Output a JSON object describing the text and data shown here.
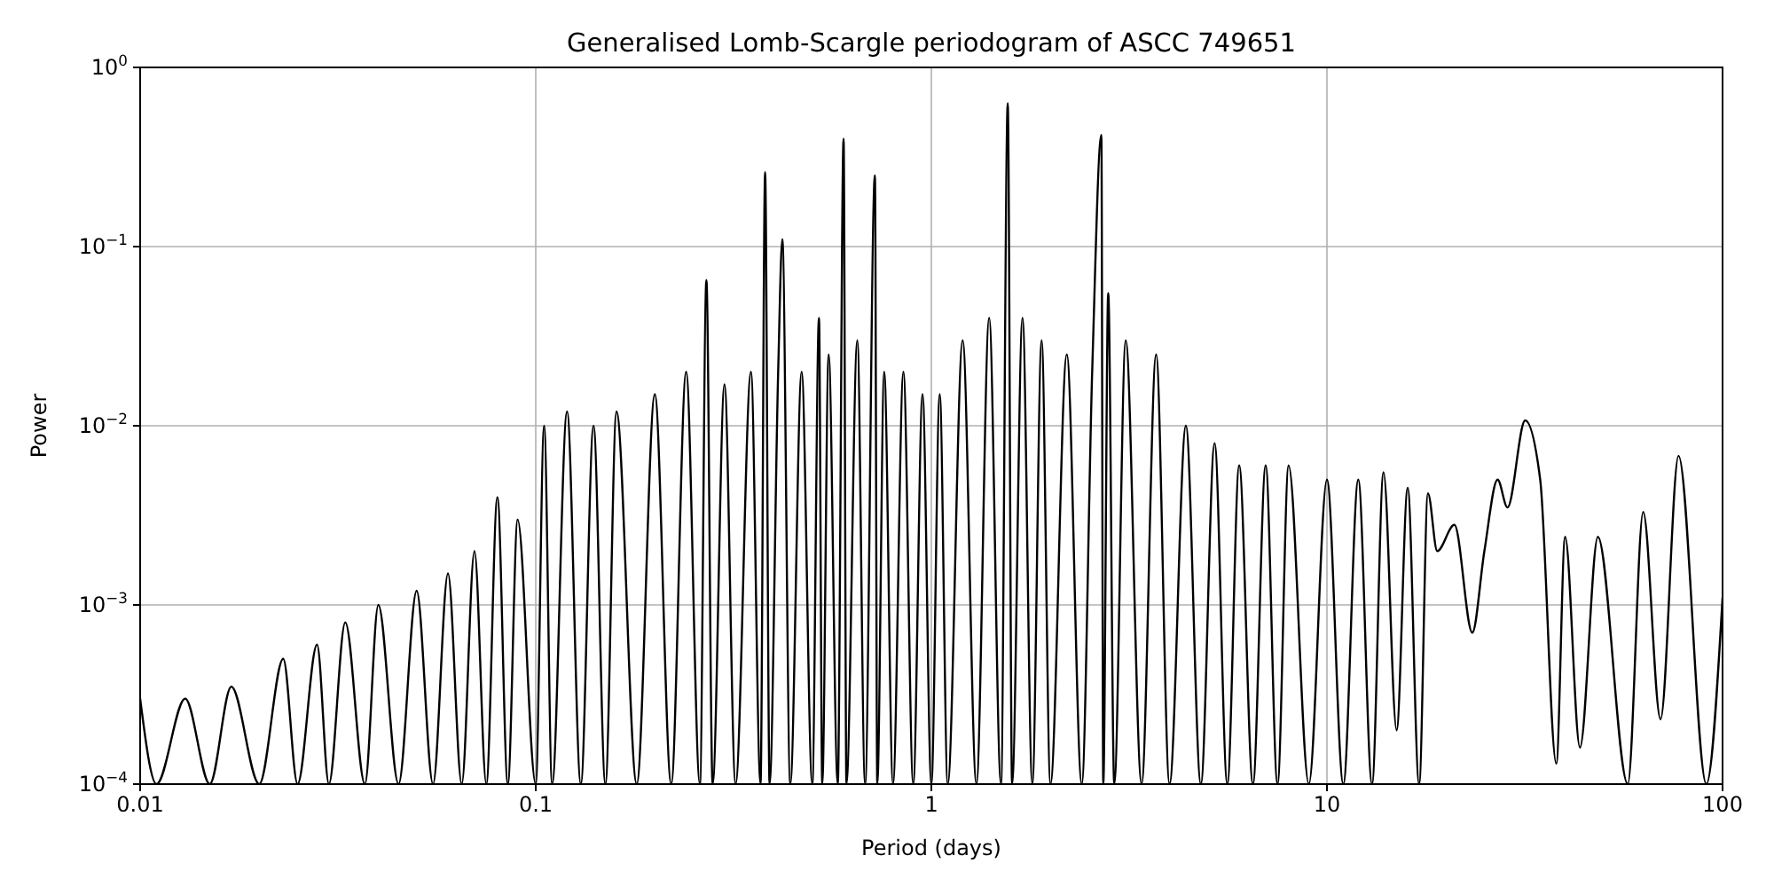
{
  "chart_data": {
    "type": "line",
    "title": "Generalised Lomb-Scargle periodogram of ASCC 749651",
    "xlabel": "Period (days)",
    "ylabel": "Power",
    "log": "xy",
    "grid": true,
    "xlim": [
      0.01,
      100
    ],
    "xticks": [
      0.01,
      0.1,
      1,
      10,
      100
    ],
    "ylim": [
      0.0001,
      1
    ],
    "yticks": [
      {
        "value": 0.0001,
        "label": "10$^{−4}$"
      },
      {
        "value": 0.001,
        "label": "10$^{−3}$"
      },
      {
        "value": 0.01,
        "label": "10$^{−2}$"
      },
      {
        "value": 0.1,
        "label": "10$^{−1}$"
      },
      {
        "value": 1,
        "label": "10$^{0}$"
      }
    ],
    "series": [
      {
        "color": "#000000",
        "x": [
          0.01,
          0.011,
          0.013,
          0.015,
          0.017,
          0.02,
          0.023,
          0.025,
          0.028,
          0.03,
          0.033,
          0.037,
          0.04,
          0.045,
          0.05,
          0.055,
          0.06,
          0.065,
          0.07,
          0.075,
          0.08,
          0.085,
          0.09,
          0.1,
          0.105,
          0.11,
          0.12,
          0.13,
          0.14,
          0.15,
          0.16,
          0.18,
          0.2,
          0.22,
          0.24,
          0.26,
          0.27,
          0.28,
          0.3,
          0.32,
          0.35,
          0.37,
          0.38,
          0.39,
          0.41,
          0.42,
          0.44,
          0.47,
          0.5,
          0.52,
          0.53,
          0.55,
          0.58,
          0.6,
          0.61,
          0.65,
          0.68,
          0.72,
          0.73,
          0.76,
          0.8,
          0.85,
          0.9,
          0.95,
          1.0,
          1.05,
          1.1,
          1.2,
          1.3,
          1.4,
          1.5,
          1.56,
          1.6,
          1.7,
          1.8,
          1.9,
          2.0,
          2.2,
          2.4,
          2.55,
          2.69,
          2.72,
          2.8,
          2.9,
          3.1,
          3.4,
          3.7,
          4.0,
          4.4,
          4.8,
          5.2,
          5.6,
          6.0,
          6.5,
          7.0,
          7.5,
          8.0,
          9.0,
          10,
          11,
          12,
          13,
          13.9,
          15,
          16,
          17.1,
          18,
          19,
          21,
          23.3,
          25,
          27,
          28.6,
          31.7,
          34.6,
          38,
          40,
          43.6,
          48.4,
          57.6,
          63,
          69.7,
          77.4,
          91,
          100
        ],
        "values": [
          0.0003,
          0.0001,
          0.0003,
          0.0001,
          0.00035,
          0.0001,
          0.0005,
          0.0001,
          0.0006,
          0.0001,
          0.0008,
          0.0001,
          0.001,
          0.0001,
          0.0012,
          0.0001,
          0.0015,
          0.0001,
          0.002,
          0.0001,
          0.004,
          0.0001,
          0.003,
          0.0001,
          0.01,
          0.0001,
          0.012,
          0.0001,
          0.01,
          0.0001,
          0.012,
          0.0001,
          0.015,
          0.0001,
          0.02,
          0.0001,
          0.065,
          0.0001,
          0.017,
          0.0001,
          0.02,
          0.0001,
          0.26,
          0.0001,
          0.02,
          0.11,
          0.0001,
          0.02,
          0.0001,
          0.04,
          0.0001,
          0.025,
          0.0001,
          0.4,
          0.0001,
          0.03,
          0.0001,
          0.25,
          0.0001,
          0.02,
          0.0001,
          0.02,
          0.0001,
          0.015,
          0.0001,
          0.015,
          0.0001,
          0.03,
          0.0001,
          0.04,
          0.0001,
          0.63,
          0.0001,
          0.04,
          0.0001,
          0.03,
          0.0001,
          0.025,
          0.0001,
          0.02,
          0.42,
          0.0001,
          0.055,
          0.0001,
          0.03,
          0.0001,
          0.025,
          0.0001,
          0.01,
          0.0001,
          0.008,
          0.0001,
          0.006,
          0.0001,
          0.006,
          0.0001,
          0.006,
          0.0001,
          0.005,
          0.0001,
          0.005,
          0.0001,
          0.0055,
          0.0002,
          0.0045,
          0.0001,
          0.0042,
          0.002,
          0.0028,
          0.0007,
          0.002,
          0.005,
          0.0035,
          0.0107,
          0.005,
          0.00013,
          0.0024,
          0.00016,
          0.0024,
          0.0001,
          0.0033,
          0.00023,
          0.0068,
          0.0001,
          0.0011
        ]
      }
    ]
  }
}
